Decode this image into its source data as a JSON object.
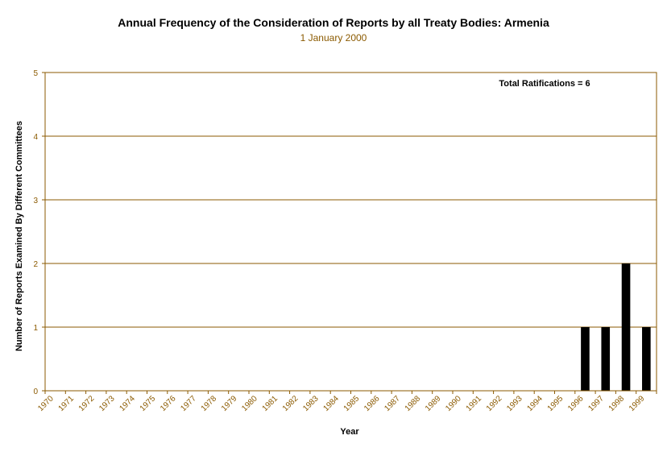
{
  "chart_data": {
    "type": "bar",
    "title": "Annual Frequency of the Consideration of Reports by all Treaty Bodies: Armenia",
    "subtitle": "1 January 2000",
    "xlabel": "Year",
    "ylabel": "Number of Reports Examined By Different Committees",
    "annotation": "Total Ratifications = 6",
    "categories": [
      "1970",
      "1971",
      "1972",
      "1973",
      "1974",
      "1975",
      "1976",
      "1977",
      "1978",
      "1979",
      "1980",
      "1981",
      "1982",
      "1983",
      "1984",
      "1985",
      "1986",
      "1987",
      "1988",
      "1989",
      "1990",
      "1991",
      "1992",
      "1993",
      "1994",
      "1995",
      "1996",
      "1997",
      "1998",
      "1999"
    ],
    "values": [
      0,
      0,
      0,
      0,
      0,
      0,
      0,
      0,
      0,
      0,
      0,
      0,
      0,
      0,
      0,
      0,
      0,
      0,
      0,
      0,
      0,
      0,
      0,
      0,
      0,
      0,
      1,
      1,
      2,
      1
    ],
    "ylim": [
      0,
      5
    ],
    "yticks": [
      "0",
      "1",
      "2",
      "3",
      "4",
      "5"
    ],
    "grid": true,
    "colors": {
      "bar": "#000000",
      "axis": "#8B5A00",
      "grid": "#8B5A00",
      "text": "#8B5A00"
    }
  }
}
